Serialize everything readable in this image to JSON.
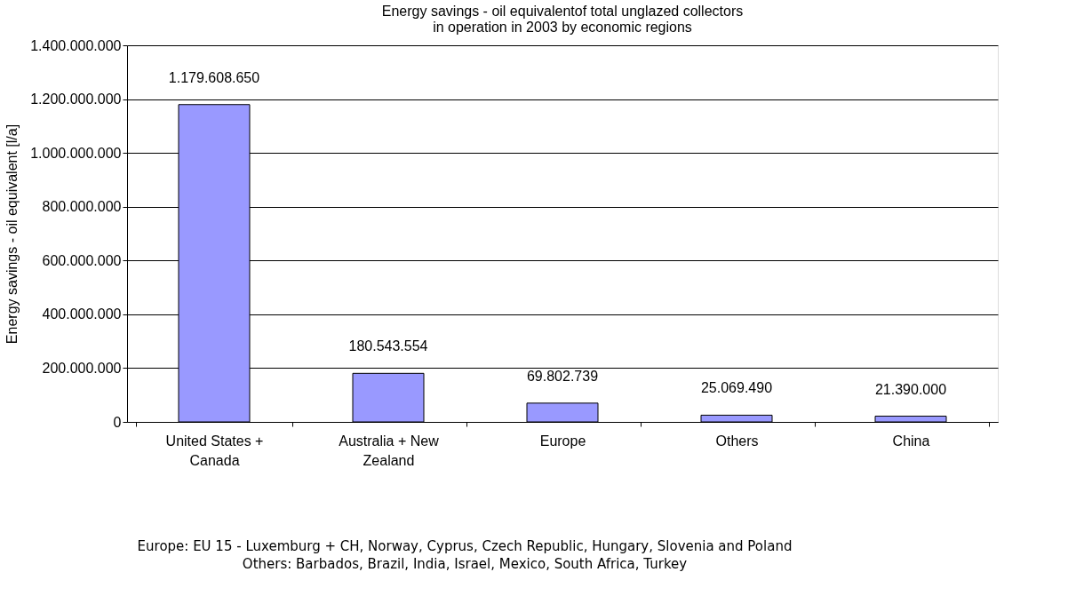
{
  "chart_data": {
    "type": "bar",
    "title": "Energy savings - oil equivalentof total unglazed collectors\nin operation in 2003 by economic regions",
    "ylabel": "Energy savings - oil equivalent [l/a]",
    "categories": [
      "United States + Canada",
      "Australia + New Zealand",
      "Europe",
      "Others",
      "China"
    ],
    "values": [
      1179608650,
      180543554,
      69802739,
      25069490,
      21390000
    ],
    "value_labels": [
      "1.179.608.650",
      "180.543.554",
      "69.802.739",
      "25.069.490",
      "21.390.000"
    ],
    "color": "#9999ff",
    "ylim": [
      0,
      1400000000
    ],
    "yticks": [
      0,
      {
        "value": 200000000,
        "label": "200.000.000"
      },
      {
        "value": 400000000,
        "label": "400.000.000"
      },
      {
        "value": 600000000,
        "label": "600.000.000"
      },
      {
        "value": 800000000,
        "label": "800.000.000"
      },
      {
        "value": 1000000000,
        "label": "1.000.000.000"
      },
      {
        "value": 1200000000,
        "label": "1.200.000.000"
      },
      {
        "value": 1400000000,
        "label": "1.400.000.000"
      }
    ],
    "grid": "y",
    "annotations": [
      "Europe: EU 15 - Luxemburg + CH, Norway, Cyprus, Czech Republic, Hungary, Slovenia and Poland",
      "Others: Barbados, Brazil, India, Israel, Mexico, South Africa, Turkey"
    ]
  }
}
